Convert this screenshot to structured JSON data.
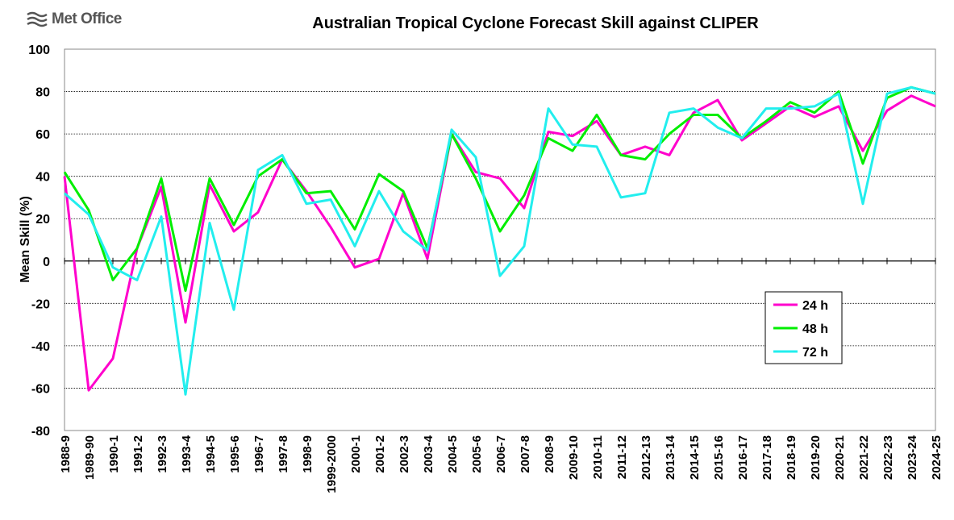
{
  "logo": {
    "text": "Met Office"
  },
  "chart_data": {
    "type": "line",
    "title": "Australian Tropical Cyclone Forecast Skill against CLIPER",
    "xlabel": "",
    "ylabel": "Mean Skill (%)",
    "ylim": [
      -80,
      100
    ],
    "yticks": [
      -80,
      -60,
      -40,
      -20,
      0,
      20,
      40,
      60,
      80,
      100
    ],
    "grid": true,
    "legend_position": "bottom-right",
    "categories": [
      "1988-9",
      "1989-90",
      "1990-1",
      "1991-2",
      "1992-3",
      "1993-4",
      "1994-5",
      "1995-6",
      "1996-7",
      "1997-8",
      "1998-9",
      "1999-2000",
      "2000-1",
      "2001-2",
      "2002-3",
      "2003-4",
      "2004-5",
      "2005-6",
      "2006-7",
      "2007-8",
      "2008-9",
      "2009-10",
      "2010-11",
      "2011-12",
      "2012-13",
      "2013-14",
      "2014-15",
      "2015-16",
      "2016-17",
      "2017-18",
      "2018-19",
      "2019-20",
      "2020-21",
      "2021-22",
      "2022-23",
      "2023-24",
      "2024-25"
    ],
    "series": [
      {
        "name": "24 h",
        "color": "#ff00cc",
        "values": [
          40,
          -61,
          -46,
          6,
          35,
          -29,
          36,
          14,
          23,
          48,
          33,
          16,
          -3,
          1,
          32,
          1,
          60,
          42,
          39,
          25,
          61,
          59,
          66,
          50,
          54,
          50,
          70,
          76,
          57,
          65,
          73,
          68,
          73,
          52,
          71,
          78,
          73
        ]
      },
      {
        "name": "48 h",
        "color": "#00ee00",
        "values": [
          42,
          24,
          -9,
          6,
          39,
          -14,
          39,
          17,
          40,
          48,
          32,
          33,
          15,
          41,
          33,
          6,
          60,
          39,
          14,
          31,
          58,
          52,
          69,
          50,
          48,
          60,
          69,
          69,
          58,
          66,
          75,
          70,
          80,
          46,
          77,
          82,
          79
        ]
      },
      {
        "name": "72 h",
        "color": "#22eeee",
        "values": [
          32,
          22,
          -3,
          -9,
          21,
          -63,
          18,
          -23,
          43,
          50,
          27,
          29,
          7,
          33,
          14,
          5,
          62,
          49,
          -7,
          7,
          72,
          55,
          54,
          30,
          32,
          70,
          72,
          63,
          58,
          72,
          72,
          73,
          79,
          27,
          79,
          82,
          79
        ]
      }
    ]
  }
}
